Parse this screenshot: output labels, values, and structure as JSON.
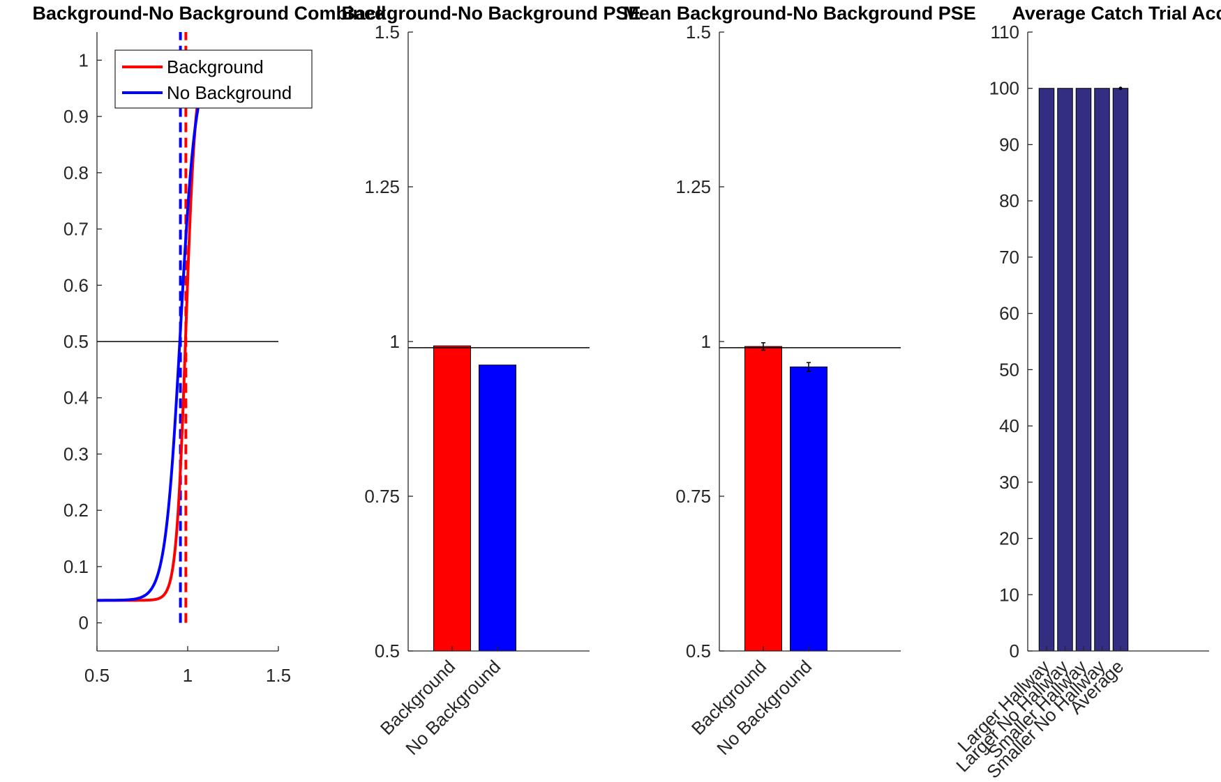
{
  "chart_data": [
    {
      "type": "line",
      "title": "Background-No Background Combined",
      "xlim": [
        0.5,
        1.5
      ],
      "ylim": [
        -0.05,
        1.05
      ],
      "x_ticks": [
        "0.5",
        "1",
        "1.5"
      ],
      "y_ticks": [
        "0",
        "0.1",
        "0.2",
        "0.3",
        "0.4",
        "0.5",
        "0.6",
        "0.7",
        "0.8",
        "0.9",
        "1"
      ],
      "legend_position": "top-right",
      "reference_line_y": 0.5,
      "series": [
        {
          "name": "Background",
          "color": "#ff0000",
          "pse": 0.99,
          "slope": 38,
          "guess": 0.04,
          "lapse": 0.0
        },
        {
          "name": "No Background",
          "color": "#0000ff",
          "pse": 0.96,
          "slope": 24,
          "guess": 0.04,
          "lapse": 0.0
        }
      ],
      "pse_markers": [
        {
          "x": 0.99,
          "color": "#ff0000"
        },
        {
          "x": 0.96,
          "color": "#0000ff"
        }
      ]
    },
    {
      "type": "bar",
      "title": "Background-No Background PSE",
      "categories": [
        "Background",
        "No Background"
      ],
      "values": [
        0.993,
        0.962
      ],
      "colors": [
        "#ff0000",
        "#0000ff"
      ],
      "ylim": [
        0.5,
        1.5
      ],
      "y_ticks": [
        "0.5",
        "0.75",
        "1",
        "1.25",
        "1.5"
      ],
      "reference_line_y": 0.99
    },
    {
      "type": "bar",
      "title": "Mean Background-No Background PSE",
      "categories": [
        "Background",
        "No Background"
      ],
      "values": [
        0.992,
        0.959
      ],
      "errors": [
        0.006,
        0.007
      ],
      "colors": [
        "#ff0000",
        "#0000ff"
      ],
      "ylim": [
        0.5,
        1.5
      ],
      "y_ticks": [
        "0.5",
        "0.75",
        "1",
        "1.25",
        "1.5"
      ],
      "reference_line_y": 0.99
    },
    {
      "type": "bar",
      "title": "Average Catch Trial Accuracy",
      "categories": [
        "Larger Hallway",
        "Larger No Hallway",
        "Smaller Hallway",
        "Smaller No Hallway",
        "Average"
      ],
      "values": [
        100,
        100,
        100,
        100,
        100
      ],
      "colors": [
        "#332e82",
        "#332e82",
        "#332e82",
        "#332e82",
        "#332e82"
      ],
      "ylim": [
        0,
        110
      ],
      "y_ticks": [
        "0",
        "10",
        "20",
        "30",
        "40",
        "50",
        "60",
        "70",
        "80",
        "90",
        "100",
        "110"
      ]
    }
  ]
}
